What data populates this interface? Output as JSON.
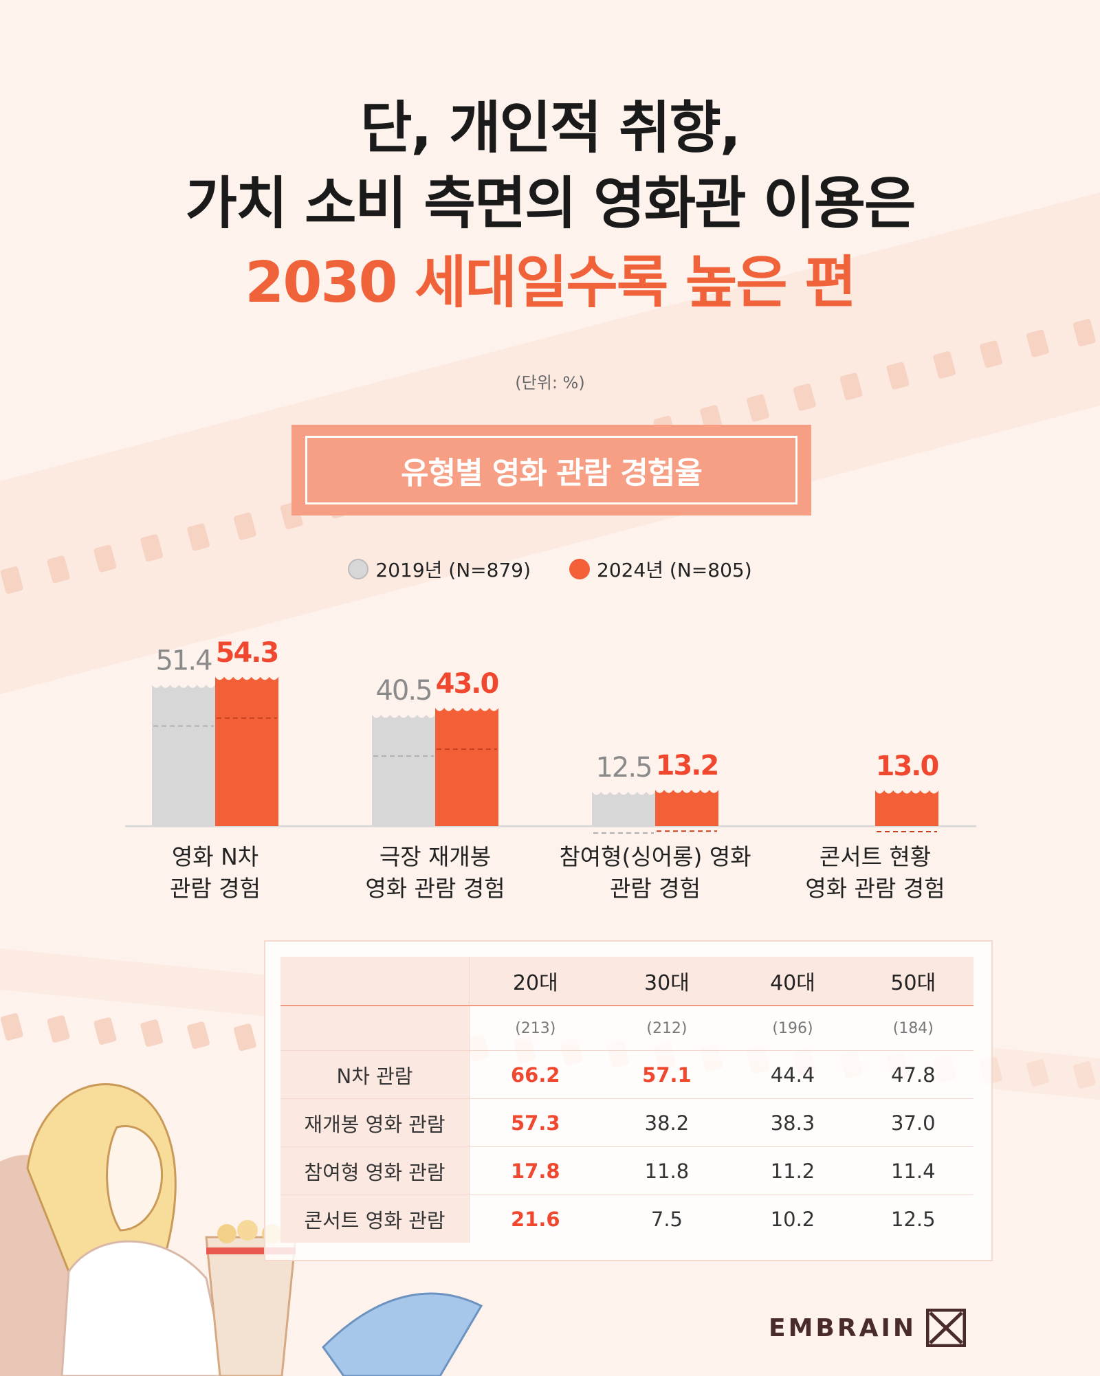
{
  "header": {
    "line1": "단, 개인적 취향,",
    "line2": "가치 소비 측면의 영화관 이용은",
    "line3": "2030 세대일수록 높은 편",
    "unit": "(단위: %)"
  },
  "colors": {
    "accent": "#f0633a",
    "series_2019": "#d7d7d7",
    "series_2024": "#f36037",
    "highlight": "#f0472f"
  },
  "chart_data": {
    "type": "bar",
    "title": "유형별 영화 관람 경험율",
    "categories": [
      [
        "영화 N차",
        "관람 경험"
      ],
      [
        "극장 재개봉",
        "영화 관람 경험"
      ],
      [
        "참여형(싱어롱) 영화",
        "관람 경험"
      ],
      [
        "콘서트 현황",
        "영화 관람 경험"
      ]
    ],
    "series": [
      {
        "name": "2019년 (N=879)",
        "values": [
          51.4,
          40.5,
          12.5,
          null
        ],
        "labels": [
          "51.4",
          "40.5",
          "12.5",
          ""
        ]
      },
      {
        "name": "2024년 (N=805)",
        "values": [
          54.3,
          43.0,
          13.2,
          13.0
        ],
        "labels": [
          "54.3",
          "43.0",
          "13.2",
          "13.0"
        ]
      }
    ],
    "ylim": [
      0,
      60
    ],
    "legend": "top-center"
  },
  "table": {
    "columns": [
      "20대",
      "30대",
      "40대",
      "50대"
    ],
    "sample_sizes": [
      "(213)",
      "(212)",
      "(196)",
      "(184)"
    ],
    "rows": [
      {
        "label": "N차 관람",
        "values": [
          "66.2",
          "57.1",
          "44.4",
          "47.8"
        ],
        "highlight": [
          true,
          true,
          false,
          false
        ]
      },
      {
        "label": "재개봉 영화 관람",
        "values": [
          "57.3",
          "38.2",
          "38.3",
          "37.0"
        ],
        "highlight": [
          true,
          false,
          false,
          false
        ]
      },
      {
        "label": "참여형 영화 관람",
        "values": [
          "17.8",
          "11.8",
          "11.2",
          "11.4"
        ],
        "highlight": [
          true,
          false,
          false,
          false
        ]
      },
      {
        "label": "콘서트 영화 관람",
        "values": [
          "21.6",
          "7.5",
          "10.2",
          "12.5"
        ],
        "highlight": [
          true,
          false,
          false,
          false
        ]
      }
    ]
  },
  "brand": {
    "name": "EMBRAIN"
  }
}
